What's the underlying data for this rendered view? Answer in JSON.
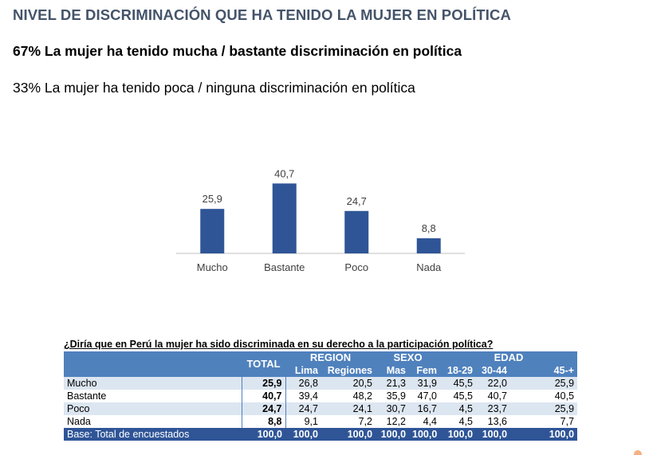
{
  "title": "NIVEL DE DISCRIMINACIÓN QUE HA TENIDO LA MUJER EN POLÍTICA",
  "summary": {
    "line1": "67% La mujer ha tenido mucha / bastante discriminación en política",
    "line2": "33% La mujer ha tenido poca / ninguna discriminación en política"
  },
  "chart_data": {
    "type": "bar",
    "title": "",
    "xlabel": "",
    "ylabel": "",
    "categories": [
      "Mucho",
      "Bastante",
      "Poco",
      "Nada"
    ],
    "values": [
      25.9,
      40.7,
      24.7,
      8.8
    ],
    "value_labels": [
      "25,9",
      "40,7",
      "24,7",
      "8,8"
    ],
    "ylim": [
      0,
      45
    ],
    "grid": false,
    "legend": "none",
    "bar_color": "#2f5597"
  },
  "table": {
    "question": "¿Diría que en Perú la mujer ha sido discriminada en su derecho a la participación política?",
    "total_header": "TOTAL",
    "groups": {
      "region": "REGION",
      "sexo": "SEXO",
      "edad": "EDAD"
    },
    "subheaders": [
      "Lima",
      "Regiones",
      "Mas",
      "Fem",
      "18-29",
      "30-44",
      "45-+"
    ],
    "rows": [
      {
        "label": "Mucho",
        "total": "25,9",
        "values": [
          "26,8",
          "20,5",
          "21,3",
          "31,9",
          "45,5",
          "22,0",
          "25,9"
        ]
      },
      {
        "label": "Bastante",
        "total": "40,7",
        "values": [
          "39,4",
          "48,2",
          "35,9",
          "47,0",
          "45,5",
          "40,7",
          "40,5"
        ]
      },
      {
        "label": "Poco",
        "total": "24,7",
        "values": [
          "24,7",
          "24,1",
          "30,7",
          "16,7",
          "4,5",
          "23,7",
          "25,9"
        ]
      },
      {
        "label": "Nada",
        "total": "8,8",
        "values": [
          "9,1",
          "7,2",
          "12,2",
          "4,4",
          "4,5",
          "13,6",
          "7,7"
        ]
      }
    ],
    "base": {
      "label": "Base: Total de encuestados",
      "total": "100,0",
      "values": [
        "100,0",
        "100,0",
        "100,0",
        "100,0",
        "100,0",
        "100,0",
        "100,0"
      ]
    },
    "colors": {
      "header": "#4f81bd",
      "alt_row": "#dce6f1",
      "base_row": "#2f5597"
    }
  }
}
